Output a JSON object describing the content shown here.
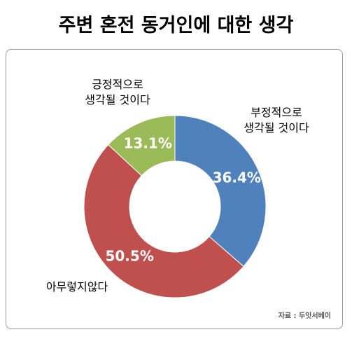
{
  "chart_data": {
    "type": "donut",
    "title": "주변 혼전 동거인에 대한 생각",
    "categories": [
      "부정적으로\n생각될 것이다",
      "아무렇지않다",
      "긍정적으로\n생각될 것이다"
    ],
    "values": [
      36.4,
      50.5,
      13.1
    ],
    "value_labels": [
      "36.4%",
      "50.5%",
      "13.1%"
    ],
    "colors": [
      "#4f81bd",
      "#c0504d",
      "#9bbb59"
    ],
    "source": "자료 : 두잇서베이"
  }
}
